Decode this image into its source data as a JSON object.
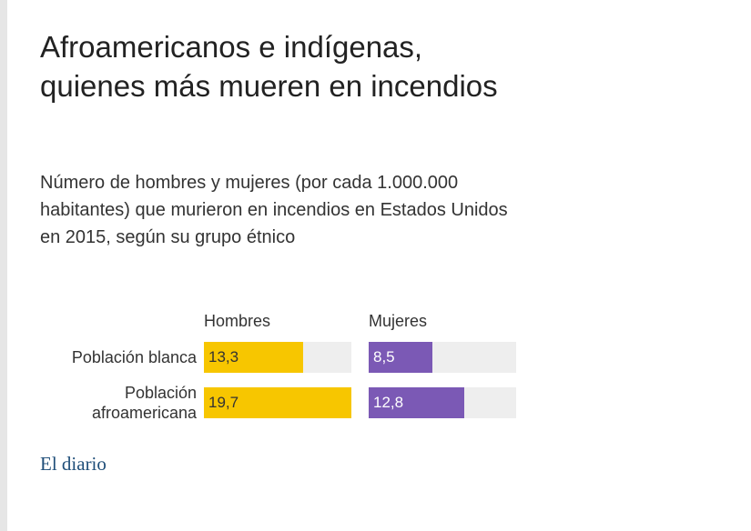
{
  "chart_data": {
    "type": "bar",
    "title": "Afroamericanos e indígenas, quienes más mueren en incendios",
    "subtitle": "Número de hombres y mujeres (por cada 1.000.000 habitantes) que murieron en incendios en Estados Unidos en 2015, según su grupo étnico",
    "categories": [
      "Población blanca",
      "Población afroamericana"
    ],
    "series": [
      {
        "name": "Hombres",
        "color": "#f7c600",
        "values": [
          13.3,
          19.7
        ],
        "value_labels": [
          "13,3",
          "19,7"
        ]
      },
      {
        "name": "Mujeres",
        "color": "#7b59b5",
        "values": [
          8.5,
          12.8
        ],
        "value_labels": [
          "8,5",
          "12,8"
        ]
      }
    ],
    "xlim": [
      0,
      19.7
    ],
    "source": "El diario"
  }
}
